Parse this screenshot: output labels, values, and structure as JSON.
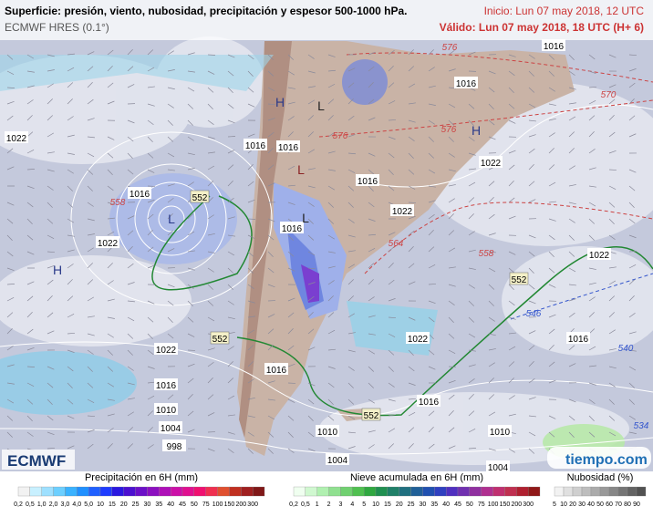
{
  "header": {
    "title": "Superficie: presión, viento, nubosidad, precipitación y espesor 500-1000 hPa.",
    "model": "ECMWF HRES (0.1°)",
    "init": "Inicio: Lun 07 may 2018, 12 UTC",
    "valid": "Válido: Lun 07 may 2018, 18 UTC (H+ 6)"
  },
  "map": {
    "pressure_labels": [
      "1016",
      "1016",
      "1022",
      "1016",
      "1016",
      "1016",
      "1016",
      "1022",
      "1022",
      "1022",
      "1016",
      "1022",
      "1022",
      "1022",
      "1016",
      "1016",
      "1016",
      "1016",
      "1010",
      "1004",
      "998",
      "1010",
      "1010",
      "1004",
      "1004"
    ],
    "thickness_labels": [
      "576",
      "570",
      "576",
      "576",
      "552",
      "564",
      "558",
      "552",
      "546",
      "540",
      "552",
      "552",
      "534",
      "558"
    ],
    "centers": [
      "H",
      "L",
      "L",
      "L",
      "L",
      "H",
      "H"
    ]
  },
  "logos": {
    "left": "ECMWF",
    "right": "tiempo.com"
  },
  "legends": [
    {
      "title": "Precipitación en 6H (mm)",
      "ticks": [
        "0,2",
        "0,5",
        "1,0",
        "2,0",
        "3,0",
        "4,0",
        "5,0",
        "10",
        "15",
        "20",
        "25",
        "30",
        "35",
        "40",
        "45",
        "50",
        "75",
        "100",
        "150",
        "200",
        "300"
      ]
    },
    {
      "title": "Nieve acumulada en 6H (mm)",
      "ticks": [
        "0,2",
        "0,5",
        "1",
        "2",
        "3",
        "4",
        "5",
        "10",
        "15",
        "20",
        "25",
        "30",
        "35",
        "40",
        "45",
        "50",
        "75",
        "100",
        "150",
        "200",
        "300"
      ]
    },
    {
      "title": "Nubosidad (%)",
      "ticks": [
        "5",
        "10",
        "20",
        "30",
        "40",
        "50",
        "60",
        "70",
        "80",
        "90"
      ]
    }
  ]
}
